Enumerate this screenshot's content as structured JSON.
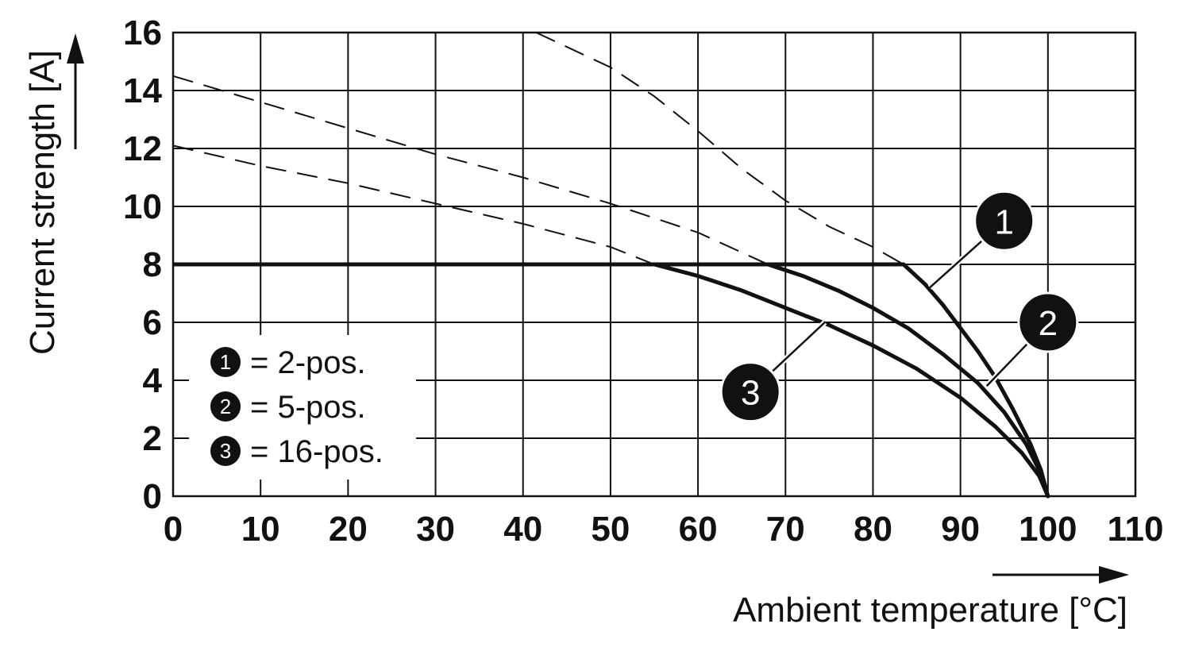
{
  "chart_data": {
    "type": "line",
    "title": "",
    "xlabel": "Ambient temperature [°C]",
    "ylabel": "Current strength [A]",
    "xlim": [
      0,
      110
    ],
    "ylim": [
      0,
      16
    ],
    "x_ticks": [
      0,
      10,
      20,
      30,
      40,
      50,
      60,
      70,
      80,
      90,
      100,
      110
    ],
    "y_ticks": [
      0,
      2,
      4,
      6,
      8,
      10,
      12,
      14,
      16
    ],
    "grid": true,
    "cap_line": {
      "value": 8,
      "x_range": [
        0,
        83.5
      ]
    },
    "series": [
      {
        "marker": "1",
        "legend_label": "= 2-pos.",
        "points": [
          [
            83.5,
            8
          ],
          [
            86,
            7.3
          ],
          [
            88,
            6.6
          ],
          [
            90,
            5.8
          ],
          [
            92,
            5.0
          ],
          [
            94,
            4.1
          ],
          [
            96,
            3.0
          ],
          [
            98,
            1.8
          ],
          [
            99.2,
            0.9
          ],
          [
            100,
            0
          ]
        ],
        "dashed_points": [
          [
            41.5,
            16
          ],
          [
            50,
            14.8
          ],
          [
            55,
            13.8
          ],
          [
            60,
            12.6
          ],
          [
            65,
            11.3
          ],
          [
            70,
            10.2
          ],
          [
            75,
            9.3
          ],
          [
            80,
            8.6
          ],
          [
            83.5,
            8
          ]
        ]
      },
      {
        "marker": "2",
        "legend_label": "= 5-pos.",
        "points": [
          [
            68,
            8
          ],
          [
            72,
            7.6
          ],
          [
            76,
            7.1
          ],
          [
            80,
            6.5
          ],
          [
            84,
            5.8
          ],
          [
            88,
            4.9
          ],
          [
            92,
            3.9
          ],
          [
            95,
            2.9
          ],
          [
            97.5,
            1.8
          ],
          [
            99,
            0.9
          ],
          [
            100,
            0
          ]
        ],
        "dashed_points": [
          [
            0,
            14.5
          ],
          [
            10,
            13.6
          ],
          [
            20,
            12.7
          ],
          [
            30,
            11.8
          ],
          [
            40,
            11.0
          ],
          [
            50,
            10.1
          ],
          [
            60,
            9.1
          ],
          [
            68,
            8
          ]
        ]
      },
      {
        "marker": "3",
        "legend_label": "= 16-pos.",
        "points": [
          [
            55,
            8
          ],
          [
            60,
            7.6
          ],
          [
            65,
            7.1
          ],
          [
            70,
            6.5
          ],
          [
            75,
            5.9
          ],
          [
            80,
            5.2
          ],
          [
            85,
            4.4
          ],
          [
            90,
            3.4
          ],
          [
            94,
            2.4
          ],
          [
            97,
            1.5
          ],
          [
            99,
            0.7
          ],
          [
            100,
            0
          ]
        ],
        "dashed_points": [
          [
            0,
            12.1
          ],
          [
            10,
            11.4
          ],
          [
            20,
            10.8
          ],
          [
            30,
            10.1
          ],
          [
            40,
            9.4
          ],
          [
            50,
            8.6
          ],
          [
            55,
            8
          ]
        ]
      }
    ],
    "callouts": [
      {
        "marker": "1",
        "label_at": [
          95,
          9.5
        ],
        "line_to": [
          86.5,
          7.2
        ]
      },
      {
        "marker": "2",
        "label_at": [
          100,
          6.0
        ],
        "line_to": [
          93,
          3.8
        ]
      },
      {
        "marker": "3",
        "label_at": [
          66,
          3.6
        ],
        "line_to": [
          74.5,
          6.0
        ]
      }
    ],
    "legend": {
      "placement": "bottom-left",
      "entries": [
        {
          "marker": "1",
          "label": "= 2-pos."
        },
        {
          "marker": "2",
          "label": "= 5-pos."
        },
        {
          "marker": "3",
          "label": "= 16-pos."
        }
      ]
    }
  }
}
